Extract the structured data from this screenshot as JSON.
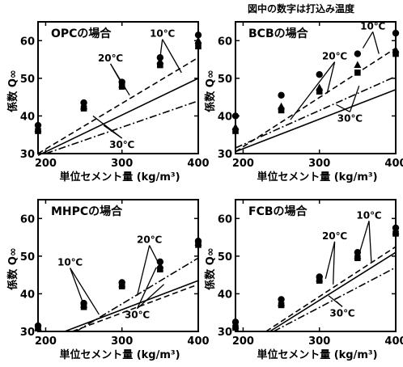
{
  "figure_note": "図中の数字は打込み温度",
  "chart_data": [
    {
      "type": "scatter",
      "title": "OPCの場合",
      "xlabel": "単位セメント量 (kg/m³)",
      "ylabel": "係数 Q∞",
      "xlim": [
        190,
        400
      ],
      "ylim": [
        30,
        65
      ],
      "xticks": [
        200,
        300,
        400
      ],
      "yticks": [
        30,
        40,
        50,
        60
      ],
      "series": [
        {
          "name": "10℃",
          "marker": "circle",
          "x": [
            190,
            250,
            300,
            350,
            400
          ],
          "y": [
            37.5,
            43.5,
            49.0,
            55.5,
            61.5
          ]
        },
        {
          "name": "20℃",
          "marker": "triangle",
          "x": [
            190,
            250,
            300,
            350,
            400
          ],
          "y": [
            36.5,
            42.5,
            48.3,
            54.5,
            60.0
          ]
        },
        {
          "name": "30℃",
          "marker": "square",
          "x": [
            190,
            250,
            300,
            350,
            400
          ],
          "y": [
            36.0,
            42.0,
            47.8,
            53.5,
            58.5
          ]
        }
      ],
      "lines": [
        {
          "name": "10℃",
          "style": "dashed",
          "x": [
            190,
            400
          ],
          "y": [
            30.0,
            55.5
          ]
        },
        {
          "name": "20℃",
          "style": "solid",
          "x": [
            190,
            400
          ],
          "y": [
            29.5,
            50.0
          ]
        },
        {
          "name": "30℃",
          "style": "dash-dot",
          "x": [
            200,
            400
          ],
          "y": [
            30.0,
            44.0
          ]
        }
      ],
      "annotations": [
        {
          "text": "10℃",
          "label_x": 353,
          "label_y": 61.0,
          "targets": [
            [
              350,
              55.5
            ],
            [
              378,
              51.5
            ]
          ]
        },
        {
          "text": "20℃",
          "label_x": 285,
          "label_y": 54.5,
          "targets": [
            [
              300,
              48.5
            ],
            [
              310,
              45.5
            ]
          ]
        },
        {
          "text": "30℃",
          "label_x": 300,
          "label_y": 31.5,
          "targets": [
            [
              262,
              40.0
            ],
            [
              276,
              37.5
            ]
          ]
        }
      ]
    },
    {
      "type": "scatter",
      "title": "BCBの場合",
      "xlabel": "単位セメント量 (kg/m³)",
      "ylabel": "係数 Q∞",
      "xlim": [
        190,
        400
      ],
      "ylim": [
        30,
        65
      ],
      "xticks": [
        200,
        300,
        400
      ],
      "yticks": [
        30,
        40,
        50,
        60
      ],
      "series": [
        {
          "name": "10℃",
          "marker": "circle",
          "x": [
            190,
            250,
            300,
            350,
            400
          ],
          "y": [
            40.0,
            45.5,
            51.0,
            56.5,
            62.0
          ]
        },
        {
          "name": "20℃",
          "marker": "triangle",
          "x": [
            190,
            250,
            300,
            350,
            400
          ],
          "y": [
            37.0,
            42.5,
            47.5,
            53.5,
            57.5
          ]
        },
        {
          "name": "30℃",
          "marker": "square",
          "x": [
            190,
            250,
            300,
            350,
            400
          ],
          "y": [
            36.0,
            41.5,
            46.5,
            51.5,
            56.5
          ]
        }
      ],
      "lines": [
        {
          "name": "10℃",
          "style": "dashed",
          "x": [
            190,
            400
          ],
          "y": [
            30.5,
            58.0
          ]
        },
        {
          "name": "20℃",
          "style": "solid",
          "x": [
            190,
            400
          ],
          "y": [
            30.5,
            47.0
          ]
        },
        {
          "name": "30℃",
          "style": "dash-dot",
          "x": [
            190,
            400
          ],
          "y": [
            31.5,
            50.5
          ]
        }
      ],
      "annotations": [
        {
          "text": "10℃",
          "label_x": 370,
          "label_y": 63.0,
          "targets": [
            [
              357,
              58.0
            ],
            [
              378,
              56.5
            ]
          ]
        },
        {
          "text": "20℃",
          "label_x": 320,
          "label_y": 55.0,
          "targets": [
            [
              310,
              46.0
            ],
            [
              262,
              39.0
            ]
          ]
        },
        {
          "text": "30℃",
          "label_x": 340,
          "label_y": 38.5,
          "targets": [
            [
              352,
              48.0
            ],
            [
              322,
              43.0
            ]
          ]
        }
      ]
    },
    {
      "type": "scatter",
      "title": "MHPCの場合",
      "xlabel": "単位セメント量 (kg/m³)",
      "ylabel": "係数 Q∞",
      "xlim": [
        190,
        400
      ],
      "ylim": [
        30,
        65
      ],
      "xticks": [
        200,
        300,
        400
      ],
      "yticks": [
        30,
        40,
        50,
        60
      ],
      "series": [
        {
          "name": "10℃",
          "marker": "circle",
          "x": [
            190,
            250,
            300,
            350,
            400
          ],
          "y": [
            31.5,
            37.5,
            43.0,
            48.5,
            54.0
          ]
        },
        {
          "name": "20℃",
          "marker": "triangle",
          "x": [
            190,
            250,
            300,
            350,
            400
          ],
          "y": [
            31.0,
            37.0,
            42.5,
            47.5,
            53.5
          ]
        },
        {
          "name": "30℃",
          "marker": "square",
          "x": [
            190,
            250,
            300,
            350,
            400
          ],
          "y": [
            30.8,
            36.5,
            42.0,
            46.5,
            53.0
          ]
        }
      ],
      "lines": [
        {
          "name": "10℃",
          "style": "dashed",
          "x": [
            235,
            400
          ],
          "y": [
            30.0,
            42.5
          ]
        },
        {
          "name": "20℃",
          "style": "solid",
          "x": [
            225,
            400
          ],
          "y": [
            30.0,
            43.5
          ]
        },
        {
          "name": "30℃",
          "style": "dash-dot",
          "x": [
            240,
            400
          ],
          "y": [
            30.0,
            49.5
          ]
        }
      ],
      "annotations": [
        {
          "text": "10℃",
          "label_x": 232,
          "label_y": 47.5,
          "targets": [
            [
              250,
              37.0
            ],
            [
              270,
              34.5
            ]
          ]
        },
        {
          "text": "20℃",
          "label_x": 336,
          "label_y": 53.5,
          "targets": [
            [
              320,
              39.5
            ],
            [
              352,
              46.5
            ]
          ]
        },
        {
          "text": "30℃",
          "label_x": 320,
          "label_y": 33.5,
          "targets": [
            [
              345,
              47.0
            ],
            [
              355,
              42.5
            ]
          ]
        }
      ]
    },
    {
      "type": "scatter",
      "title": "FCBの場合",
      "xlabel": "単位セメント量 (kg/m³)",
      "ylabel": "係数 Q∞",
      "xlim": [
        190,
        400
      ],
      "ylim": [
        30,
        65
      ],
      "xticks": [
        200,
        300,
        400
      ],
      "yticks": [
        30,
        40,
        50,
        60
      ],
      "series": [
        {
          "name": "10℃",
          "marker": "circle",
          "x": [
            190,
            250,
            300,
            350,
            400
          ],
          "y": [
            32.5,
            38.5,
            44.5,
            51.0,
            57.5
          ]
        },
        {
          "name": "20℃",
          "marker": "triangle",
          "x": [
            190,
            250,
            300,
            350,
            400
          ],
          "y": [
            31.5,
            37.5,
            44.0,
            50.0,
            56.5
          ]
        },
        {
          "name": "30℃",
          "marker": "square",
          "x": [
            190,
            250,
            300,
            350,
            400
          ],
          "y": [
            31.0,
            37.0,
            43.5,
            49.5,
            56.0
          ]
        }
      ],
      "lines": [
        {
          "name": "10℃",
          "style": "dashed",
          "x": [
            230,
            400
          ],
          "y": [
            30.0,
            52.5
          ]
        },
        {
          "name": "20℃",
          "style": "solid",
          "x": [
            235,
            400
          ],
          "y": [
            30.0,
            51.0
          ]
        },
        {
          "name": "30℃",
          "style": "dash-dot",
          "x": [
            240,
            400
          ],
          "y": [
            30.0,
            47.0
          ]
        }
      ],
      "annotations": [
        {
          "text": "10℃",
          "label_x": 365,
          "label_y": 60.0,
          "targets": [
            [
              352,
              50.5
            ],
            [
              368,
              48.5
            ]
          ]
        },
        {
          "text": "20℃",
          "label_x": 320,
          "label_y": 54.5,
          "targets": [
            [
              308,
              44.0
            ],
            [
              318,
              42.5
            ]
          ]
        },
        {
          "text": "30℃",
          "label_x": 330,
          "label_y": 34.0,
          "targets": [
            [
              312,
              39.5
            ],
            [
              322,
              38.0
            ]
          ]
        }
      ]
    }
  ]
}
